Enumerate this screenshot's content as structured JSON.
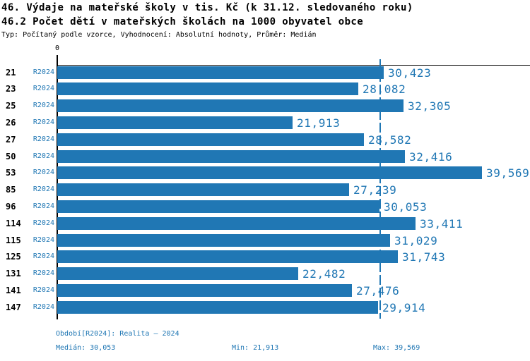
{
  "title": {
    "line1": "46. Výdaje na mateřské školy v tis. Kč (k 31.12. sledovaného roku)",
    "line2": "46.2 Počet dětí v mateřských školách na 1000 obyvatel obce",
    "meta": "Typ: Počítaný podle vzorce, Vyhodnocení: Absolutní hodnoty, Průměr: Medián"
  },
  "chart_data": {
    "type": "bar",
    "orientation": "horizontal",
    "categories": [
      "21",
      "23",
      "25",
      "26",
      "27",
      "50",
      "53",
      "85",
      "96",
      "114",
      "115",
      "125",
      "131",
      "141",
      "147"
    ],
    "series": [
      {
        "name": "R2024",
        "values": [
          30423,
          28082,
          32305,
          21913,
          28582,
          32416,
          39569,
          27239,
          30053,
          33411,
          31029,
          31743,
          22482,
          27476,
          29914
        ],
        "value_labels": [
          "30,423",
          "28,082",
          "32,305",
          "21,913",
          "28,582",
          "32,416",
          "39,569",
          "27,239",
          "30,053",
          "33,411",
          "31,029",
          "31,743",
          "22,482",
          "27,476",
          "29,914"
        ]
      }
    ],
    "median": 30053,
    "min": 21913,
    "max": 39569,
    "xlabel": "",
    "ylabel": "",
    "axis_zero_label": "0",
    "xlim": [
      0,
      44000
    ],
    "grid": false,
    "legend_position": "none",
    "bar_color": "#2077b4",
    "median_line_color": "#2077b4",
    "axis_color": "#000000"
  },
  "footer": {
    "period": "Období[R2024]: Realita – 2024",
    "median": "Medián: 30,053",
    "min": "Min: 21,913",
    "max": "Max: 39,569"
  }
}
